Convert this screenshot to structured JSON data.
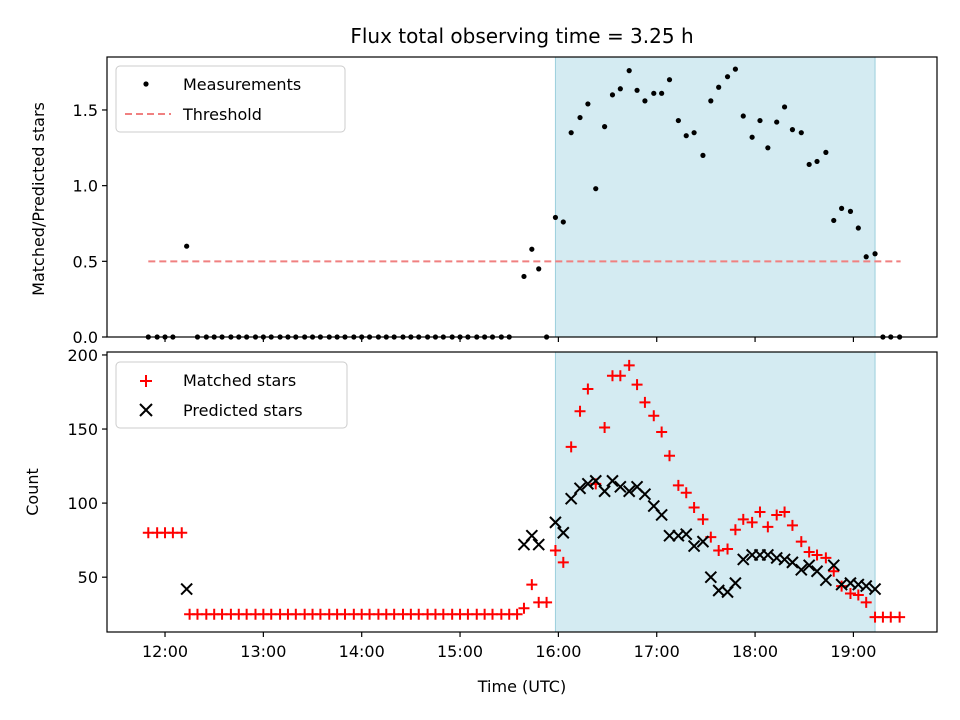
{
  "title": "Flux total observing time = 3.25 h",
  "colors": {
    "measurement": "#000000",
    "threshold": "#f08080",
    "matched": "#ff0000",
    "predicted": "#000000",
    "span": "#add8e6"
  },
  "chart_data": [
    {
      "type": "scatter",
      "panel": "top",
      "ylabel": "Matched/Predicted stars",
      "xlim": [
        11.41,
        19.85
      ],
      "ylim": [
        0,
        1.85
      ],
      "yticks": [
        0.0,
        0.5,
        1.0,
        1.5
      ],
      "ytick_labels": [
        "0.0",
        "0.5",
        "1.0",
        "1.5"
      ],
      "legend": {
        "placement": "upper-left",
        "entries": [
          "Measurements",
          "Threshold"
        ]
      },
      "threshold": {
        "name": "Threshold",
        "y": 0.5,
        "x_start": 11.83,
        "x_end": 19.48,
        "style": "dashed"
      },
      "span": {
        "x_start": 15.97,
        "x_end": 19.22
      },
      "series": [
        {
          "name": "Measurements",
          "x": [
            11.83,
            11.92,
            12.0,
            12.08,
            12.22,
            12.33,
            12.42,
            12.5,
            12.58,
            12.67,
            12.75,
            12.83,
            12.92,
            13.0,
            13.08,
            13.17,
            13.25,
            13.33,
            13.42,
            13.5,
            13.58,
            13.67,
            13.75,
            13.83,
            13.92,
            14.0,
            14.08,
            14.17,
            14.25,
            14.33,
            14.42,
            14.5,
            14.58,
            14.67,
            14.75,
            14.83,
            14.92,
            15.0,
            15.08,
            15.17,
            15.25,
            15.33,
            15.42,
            15.5,
            15.65,
            15.73,
            15.8,
            15.88,
            15.97,
            16.05,
            16.13,
            16.22,
            16.3,
            16.38,
            16.47,
            16.55,
            16.63,
            16.72,
            16.8,
            16.88,
            16.97,
            17.05,
            17.13,
            17.22,
            17.3,
            17.38,
            17.47,
            17.55,
            17.63,
            17.72,
            17.8,
            17.88,
            17.97,
            18.05,
            18.13,
            18.22,
            18.3,
            18.38,
            18.47,
            18.55,
            18.63,
            18.72,
            18.8,
            18.88,
            18.97,
            19.05,
            19.13,
            19.22,
            19.3,
            19.38,
            19.47
          ],
          "y": [
            0,
            0,
            0,
            0,
            0.6,
            0,
            0,
            0,
            0,
            0,
            0,
            0,
            0,
            0,
            0,
            0,
            0,
            0,
            0,
            0,
            0,
            0,
            0,
            0,
            0,
            0,
            0,
            0,
            0,
            0,
            0,
            0,
            0,
            0,
            0,
            0,
            0,
            0,
            0,
            0,
            0,
            0,
            0,
            0,
            0.4,
            0.58,
            0.45,
            0,
            0.79,
            0.76,
            1.35,
            1.45,
            1.54,
            0.98,
            1.39,
            1.6,
            1.64,
            1.76,
            1.63,
            1.56,
            1.61,
            1.61,
            1.7,
            1.43,
            1.33,
            1.35,
            1.2,
            1.56,
            1.65,
            1.72,
            1.77,
            1.46,
            1.32,
            1.43,
            1.25,
            1.42,
            1.52,
            1.37,
            1.35,
            1.14,
            1.16,
            1.22,
            0.77,
            0.85,
            0.83,
            0.72,
            0.53,
            0.55,
            0,
            0,
            0
          ]
        }
      ]
    },
    {
      "type": "scatter",
      "panel": "bottom",
      "xlabel": "Time (UTC)",
      "ylabel": "Count",
      "xlim": [
        11.41,
        19.85
      ],
      "ylim": [
        13,
        202
      ],
      "xticks": [
        12,
        13,
        14,
        15,
        16,
        17,
        18,
        19
      ],
      "xtick_labels": [
        "12:00",
        "13:00",
        "14:00",
        "15:00",
        "16:00",
        "17:00",
        "18:00",
        "19:00"
      ],
      "yticks": [
        50,
        100,
        150,
        200
      ],
      "ytick_labels": [
        "50",
        "100",
        "150",
        "200"
      ],
      "legend": {
        "placement": "upper-left",
        "entries": [
          "Matched stars",
          "Predicted stars"
        ]
      },
      "span": {
        "x_start": 15.97,
        "x_end": 19.22
      },
      "series": [
        {
          "name": "Matched stars",
          "marker": "plus",
          "x": [
            11.83,
            11.92,
            12.0,
            12.08,
            12.17,
            12.25,
            12.33,
            12.42,
            12.5,
            12.58,
            12.67,
            12.75,
            12.83,
            12.92,
            13.0,
            13.08,
            13.17,
            13.25,
            13.33,
            13.42,
            13.5,
            13.58,
            13.67,
            13.75,
            13.83,
            13.92,
            14.0,
            14.08,
            14.17,
            14.25,
            14.33,
            14.42,
            14.5,
            14.58,
            14.67,
            14.75,
            14.83,
            14.92,
            15.0,
            15.08,
            15.17,
            15.25,
            15.33,
            15.42,
            15.5,
            15.58,
            15.65,
            15.73,
            15.8,
            15.88,
            15.97,
            16.05,
            16.13,
            16.22,
            16.3,
            16.38,
            16.47,
            16.55,
            16.63,
            16.72,
            16.8,
            16.88,
            16.97,
            17.05,
            17.13,
            17.22,
            17.3,
            17.38,
            17.47,
            17.55,
            17.63,
            17.72,
            17.8,
            17.88,
            17.97,
            18.05,
            18.13,
            18.22,
            18.3,
            18.38,
            18.47,
            18.55,
            18.63,
            18.72,
            18.8,
            18.88,
            18.97,
            19.05,
            19.13,
            19.22,
            19.3,
            19.38,
            19.47
          ],
          "y": [
            80,
            80,
            80,
            80,
            80,
            25,
            25,
            25,
            25,
            25,
            25,
            25,
            25,
            25,
            25,
            25,
            25,
            25,
            25,
            25,
            25,
            25,
            25,
            25,
            25,
            25,
            25,
            25,
            25,
            25,
            25,
            25,
            25,
            25,
            25,
            25,
            25,
            25,
            25,
            25,
            25,
            25,
            25,
            25,
            25,
            25,
            29,
            45,
            33,
            33,
            68,
            60,
            138,
            162,
            177,
            113,
            151,
            186,
            186,
            193,
            180,
            168,
            159,
            148,
            132,
            112,
            107,
            97,
            89,
            77,
            68,
            69,
            82,
            89,
            87,
            94,
            84,
            92,
            94,
            85,
            74,
            67,
            65,
            63,
            54,
            44,
            39,
            38,
            33,
            23,
            23,
            23,
            23
          ]
        },
        {
          "name": "Predicted stars",
          "marker": "x",
          "x": [
            12.22,
            15.65,
            15.73,
            15.8,
            15.97,
            16.05,
            16.13,
            16.22,
            16.3,
            16.38,
            16.47,
            16.55,
            16.63,
            16.72,
            16.8,
            16.88,
            16.97,
            17.05,
            17.13,
            17.22,
            17.3,
            17.38,
            17.47,
            17.55,
            17.63,
            17.72,
            17.8,
            17.88,
            17.97,
            18.05,
            18.13,
            18.22,
            18.3,
            18.38,
            18.47,
            18.55,
            18.63,
            18.72,
            18.8,
            18.88,
            18.97,
            19.05,
            19.13,
            19.22
          ],
          "y": [
            42,
            72,
            78,
            72,
            87,
            80,
            103,
            110,
            113,
            115,
            108,
            115,
            111,
            108,
            111,
            106,
            98,
            92,
            78,
            78,
            79,
            71,
            74,
            50,
            41,
            40,
            46,
            62,
            65,
            65,
            65,
            63,
            62,
            60,
            55,
            58,
            54,
            48,
            58,
            45,
            46,
            45,
            44,
            42
          ]
        }
      ]
    }
  ]
}
